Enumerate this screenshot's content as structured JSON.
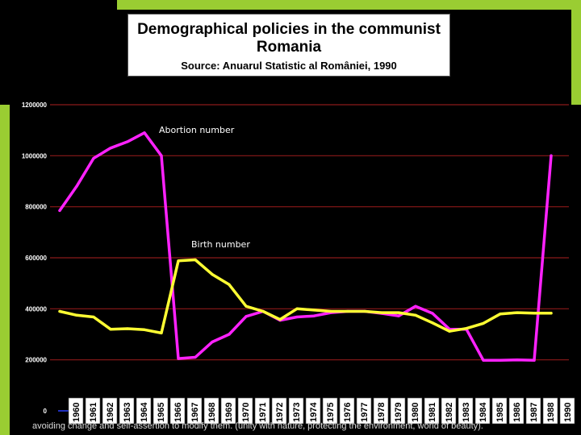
{
  "title": {
    "line1": "Demographical policies in the communist",
    "line2": "Romania",
    "source": "Source: Anuarul Statistic al României, 1990"
  },
  "slide_text": "avoiding change and self-assertion to modify them. (unity with nature, protecting the environment, world of beauty).",
  "colors": {
    "background": "#000000",
    "accent": "#9ACD32",
    "gridline": "#8B1A1A",
    "abortion_series": "#FF22FF",
    "birth_series": "#FFFF33"
  },
  "chart_data": {
    "type": "line",
    "title": "Demographical policies in the communist Romania",
    "subtitle": "Source: Anuarul Statistic al României, 1990",
    "grid": true,
    "ylim": [
      0,
      1200000
    ],
    "yticks": [
      "0",
      "200000",
      "400000",
      "600000",
      "800000",
      "1000000",
      "1200000"
    ],
    "x": [
      "1960",
      "1961",
      "1962",
      "1963",
      "1964",
      "1965",
      "1966",
      "1967",
      "1968",
      "1969",
      "1970",
      "1971",
      "1972",
      "1973",
      "1974",
      "1975",
      "1976",
      "1977",
      "1978",
      "1979",
      "1980",
      "1981",
      "1982",
      "1983",
      "1984",
      "1985",
      "1986",
      "1987",
      "1988",
      "1990"
    ],
    "series": [
      {
        "name": "Abortion number",
        "values": [
          785000,
          880000,
          990000,
          1030000,
          1055000,
          1090000,
          1000000,
          205000,
          210000,
          270000,
          300000,
          370000,
          390000,
          355000,
          368000,
          372000,
          385000,
          390000,
          390000,
          382000,
          372000,
          410000,
          382000,
          320000,
          320000,
          198000,
          198000,
          200000,
          198000,
          1000000
        ]
      },
      {
        "name": "Birth number",
        "values": [
          390000,
          375000,
          368000,
          320000,
          322000,
          318000,
          305000,
          588000,
          592000,
          535000,
          495000,
          410000,
          390000,
          358000,
          400000,
          395000,
          390000,
          390000,
          390000,
          385000,
          385000,
          375000,
          345000,
          312000,
          323000,
          343000,
          380000,
          385000,
          383000,
          383000
        ]
      }
    ],
    "annotations": [
      "Abortion number",
      "Birth number"
    ]
  }
}
